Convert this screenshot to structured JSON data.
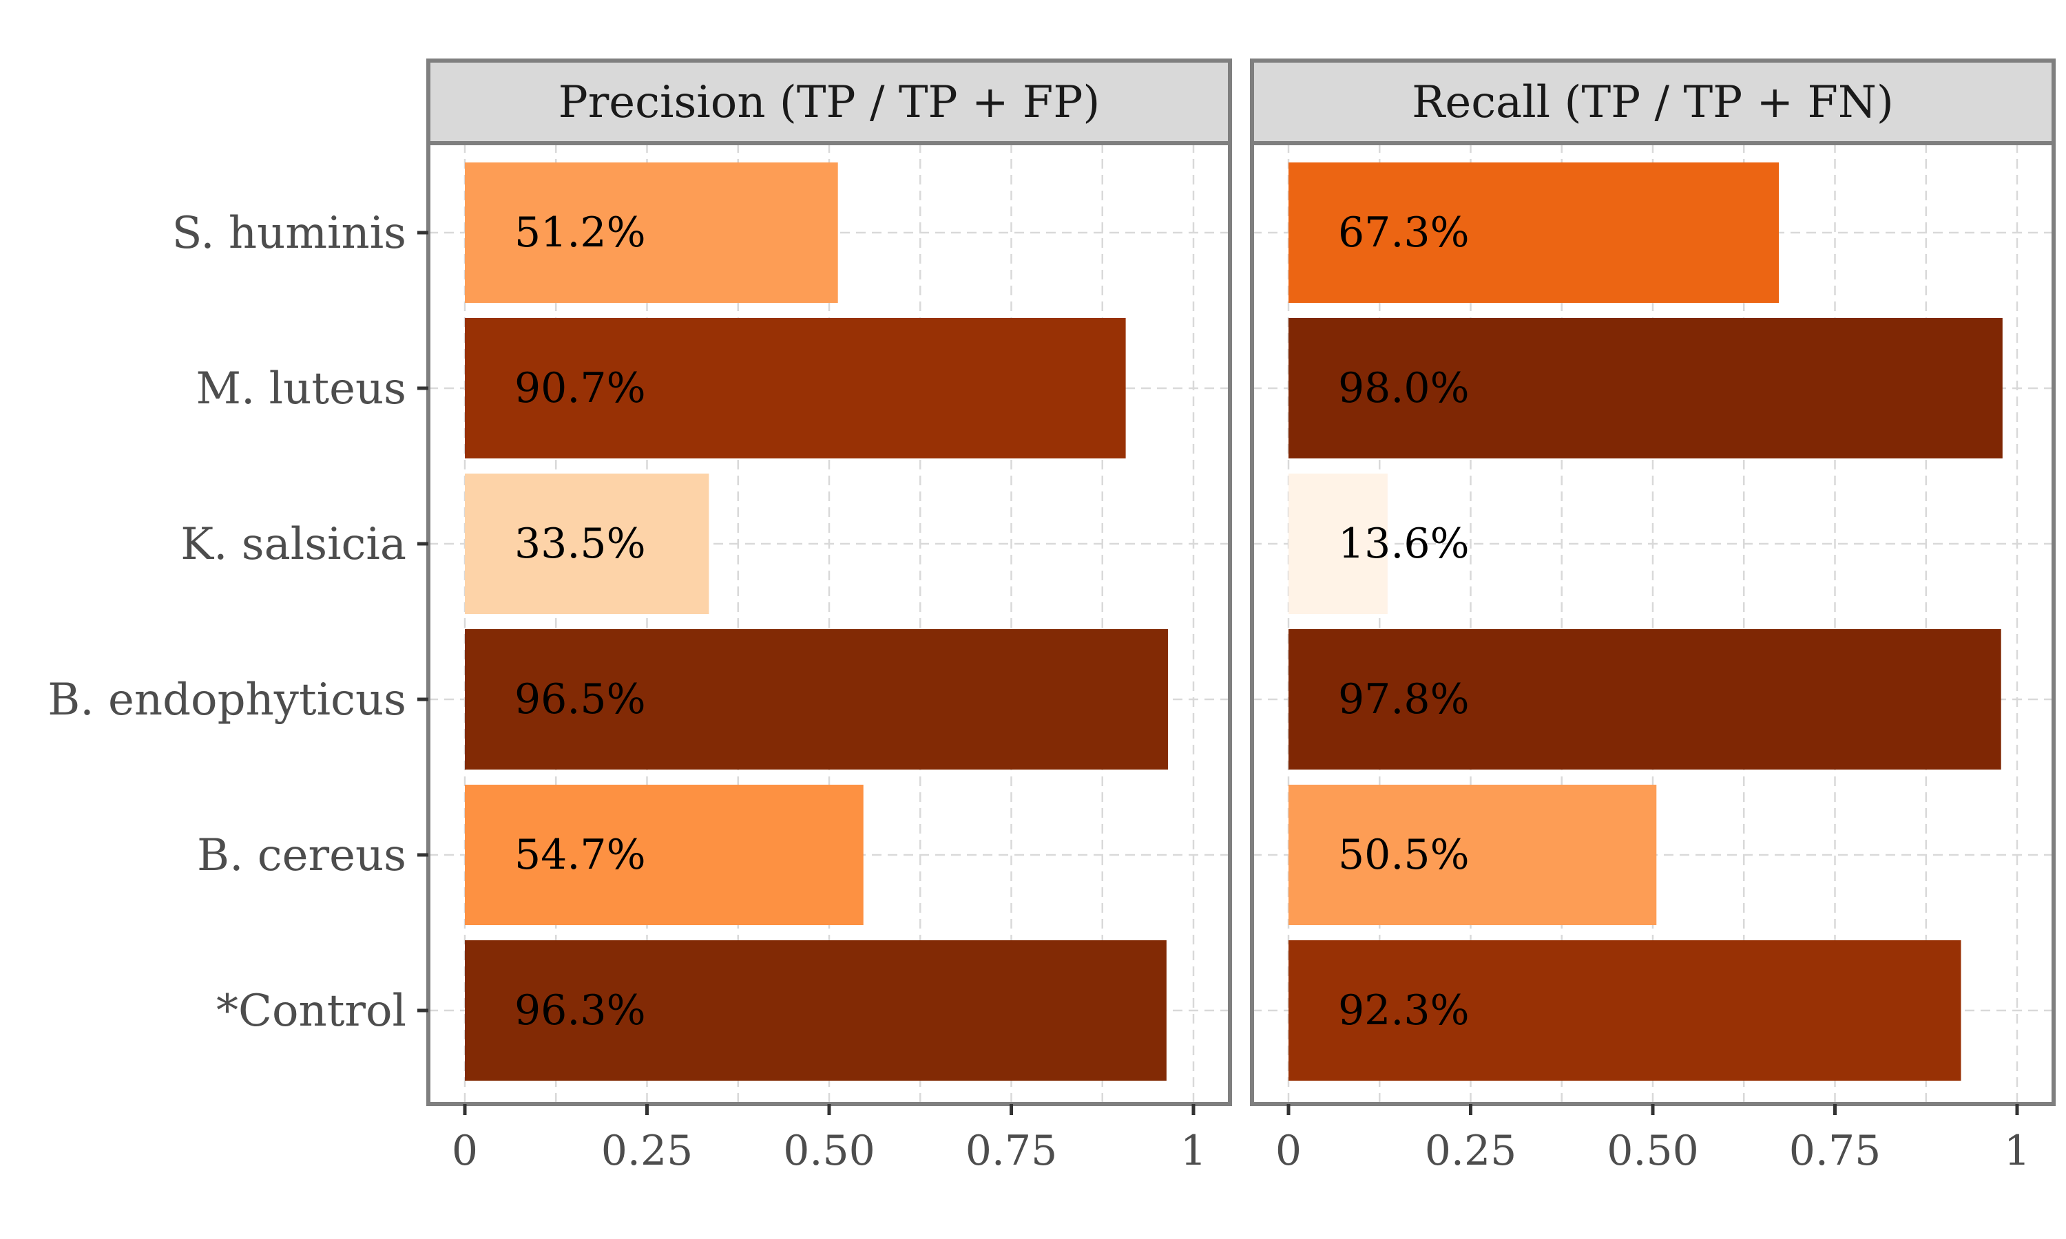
{
  "chart_data": {
    "type": "bar",
    "orientation": "horizontal",
    "categories": [
      "S. huminis",
      "M. luteus",
      "K. salsicia",
      "B. endophyticus",
      "B. cereus",
      "*Control"
    ],
    "xlim": [
      0,
      1
    ],
    "x_ticks": [
      0,
      0.25,
      0.5,
      0.75,
      1
    ],
    "x_tick_labels": [
      "0",
      "0.25",
      "0.50",
      "0.75",
      "1"
    ],
    "grid": true,
    "legend": "none",
    "color_scale": [
      "#fff5eb",
      "#fdd0a2",
      "#fd8d3c",
      "#e6550d",
      "#a63603",
      "#7f2704"
    ],
    "panels": [
      {
        "title": "Precision (TP / TP + FP)",
        "values": [
          0.512,
          0.907,
          0.335,
          0.965,
          0.547,
          0.963
        ],
        "labels": [
          "51.2%",
          "90.7%",
          "33.5%",
          "96.5%",
          "54.7%",
          "96.3%"
        ],
        "colors": [
          "#fd9d55",
          "#983105",
          "#fdd3a8",
          "#822a05",
          "#fd9142",
          "#822a05"
        ]
      },
      {
        "title": "Recall (TP / TP + FN)",
        "values": [
          0.673,
          0.98,
          0.136,
          0.978,
          0.505,
          0.923
        ],
        "labels": [
          "67.3%",
          "98.0%",
          "13.6%",
          "97.8%",
          "50.5%",
          "92.3%"
        ],
        "colors": [
          "#ec6513",
          "#7f2704",
          "#fff3e7",
          "#7f2704",
          "#fd9d55",
          "#983105"
        ]
      }
    ]
  }
}
